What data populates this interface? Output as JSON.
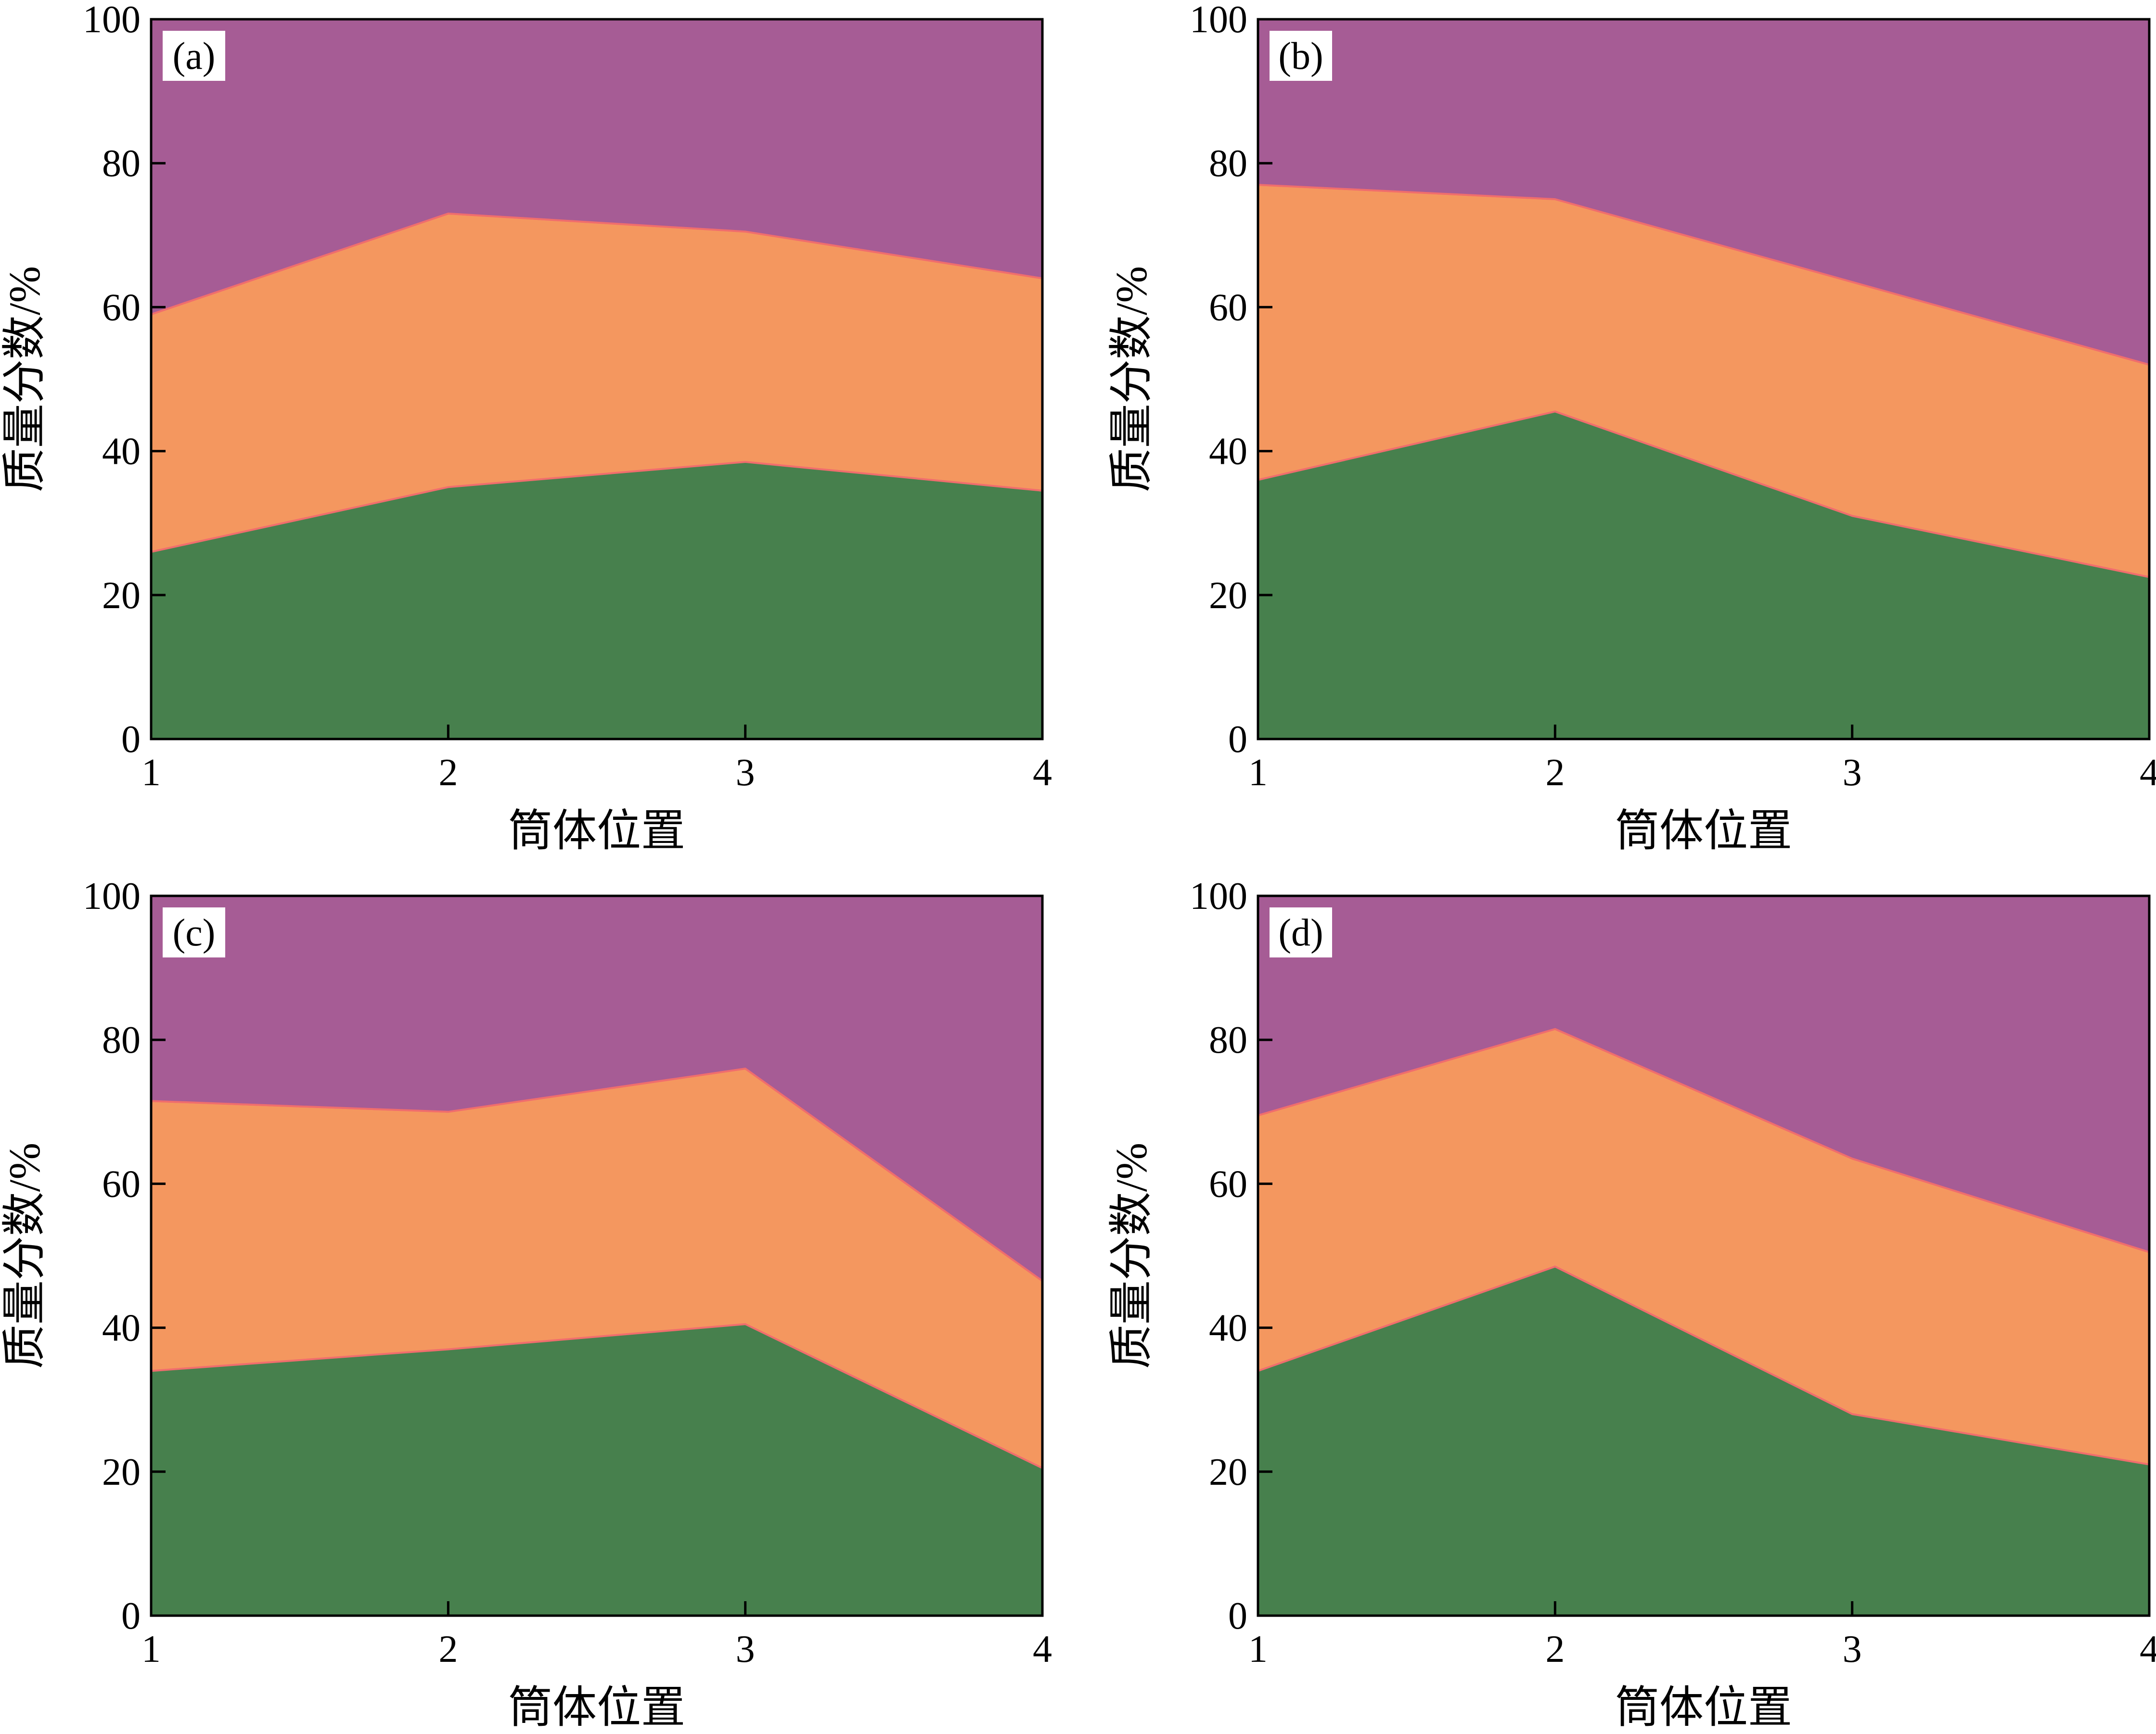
{
  "chart_data": [
    {
      "type": "area",
      "stacked": true,
      "panel_label": "(a)",
      "x": [
        1,
        2,
        3,
        4
      ],
      "series": [
        {
          "color": "#47804d",
          "values": [
            26,
            35,
            38.5,
            34.5
          ]
        },
        {
          "color": "#f4975f",
          "values": [
            33,
            38,
            32,
            29.5
          ]
        },
        {
          "color": "#a65c95",
          "values": [
            41,
            27,
            29.5,
            36
          ]
        }
      ],
      "xlabel": "筒体位置",
      "ylabel": "质量分数/%",
      "xlim": [
        1,
        4
      ],
      "ylim": [
        0,
        100
      ],
      "xticks": [
        "1",
        "2",
        "3",
        "4"
      ],
      "yticks": [
        "0",
        "20",
        "40",
        "60",
        "80",
        "100"
      ]
    },
    {
      "type": "area",
      "stacked": true,
      "panel_label": "(b)",
      "x": [
        1,
        2,
        3,
        4
      ],
      "series": [
        {
          "color": "#47804d",
          "values": [
            36,
            45.5,
            31,
            22.5
          ]
        },
        {
          "color": "#f4975f",
          "values": [
            41,
            29.5,
            32.5,
            29.5
          ]
        },
        {
          "color": "#a65c95",
          "values": [
            23,
            25,
            36.5,
            48
          ]
        }
      ],
      "xlabel": "筒体位置",
      "ylabel": "质量分数/%",
      "xlim": [
        1,
        4
      ],
      "ylim": [
        0,
        100
      ],
      "xticks": [
        "1",
        "2",
        "3",
        "4"
      ],
      "yticks": [
        "0",
        "20",
        "40",
        "60",
        "80",
        "100"
      ]
    },
    {
      "type": "area",
      "stacked": true,
      "panel_label": "(c)",
      "x": [
        1,
        2,
        3,
        4
      ],
      "series": [
        {
          "color": "#47804d",
          "values": [
            34,
            37,
            40.5,
            20.5
          ]
        },
        {
          "color": "#f4975f",
          "values": [
            37.5,
            33,
            35.5,
            26
          ]
        },
        {
          "color": "#a65c95",
          "values": [
            28.5,
            30,
            24,
            53.5
          ]
        }
      ],
      "xlabel": "筒体位置",
      "ylabel": "质量分数/%",
      "xlim": [
        1,
        4
      ],
      "ylim": [
        0,
        100
      ],
      "xticks": [
        "1",
        "2",
        "3",
        "4"
      ],
      "yticks": [
        "0",
        "20",
        "40",
        "60",
        "80",
        "100"
      ]
    },
    {
      "type": "area",
      "stacked": true,
      "panel_label": "(d)",
      "x": [
        1,
        2,
        3,
        4
      ],
      "series": [
        {
          "color": "#47804d",
          "values": [
            34,
            48.5,
            28,
            21
          ]
        },
        {
          "color": "#f4975f",
          "values": [
            35.5,
            33,
            35.5,
            29.5
          ]
        },
        {
          "color": "#a65c95",
          "values": [
            30.5,
            18.5,
            36.5,
            49.5
          ]
        }
      ],
      "xlabel": "筒体位置",
      "ylabel": "质量分数/%",
      "xlim": [
        1,
        4
      ],
      "ylim": [
        0,
        100
      ],
      "xticks": [
        "1",
        "2",
        "3",
        "4"
      ],
      "yticks": [
        "0",
        "20",
        "40",
        "60",
        "80",
        "100"
      ]
    }
  ]
}
